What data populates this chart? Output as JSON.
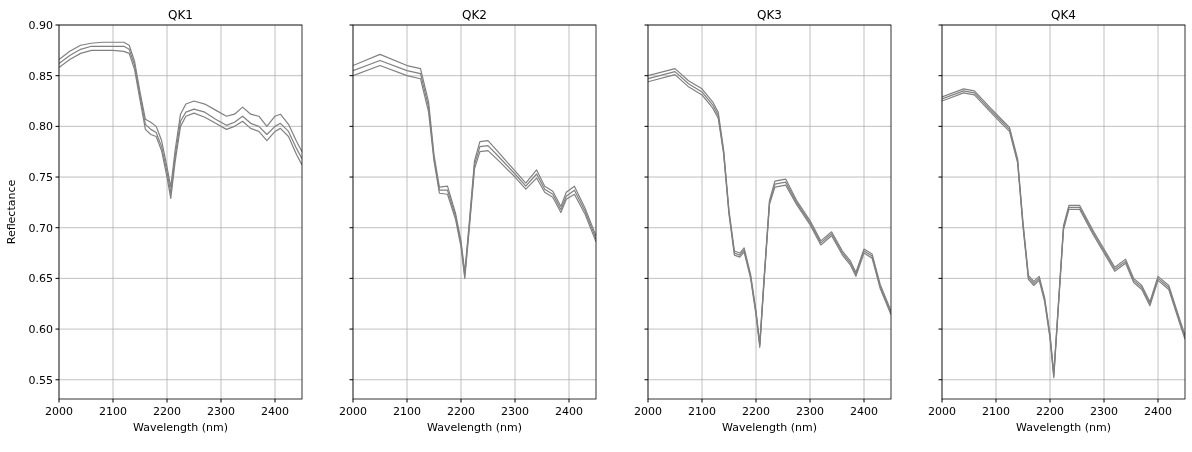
{
  "chart_data": [
    {
      "type": "line",
      "title": "QK1",
      "xlabel": "Wavelength (nm)",
      "ylabel": "Reflectance",
      "xlim": [
        2000,
        2450
      ],
      "xticks": [
        2000,
        2100,
        2200,
        2300,
        2400
      ],
      "ylim": [
        0.531,
        0.9
      ],
      "yticks": [
        {
          "value": 0.55,
          "label": "0.55"
        },
        {
          "value": 0.6,
          "label": "0.60"
        },
        {
          "value": 0.65,
          "label": "0.65"
        },
        {
          "value": 0.7,
          "label": "0.70"
        },
        {
          "value": 0.75,
          "label": "0.75"
        },
        {
          "value": 0.8,
          "label": "0.80"
        },
        {
          "value": 0.85,
          "label": "0.85"
        },
        {
          "value": 0.9,
          "label": "0.90"
        }
      ],
      "grid": true,
      "marker": "none",
      "line_style": "solid",
      "x": [
        2000,
        2020,
        2040,
        2060,
        2080,
        2100,
        2120,
        2130,
        2140,
        2150,
        2160,
        2170,
        2180,
        2190,
        2200,
        2207,
        2215,
        2225,
        2235,
        2250,
        2270,
        2290,
        2310,
        2325,
        2340,
        2355,
        2370,
        2385,
        2400,
        2410,
        2425,
        2440,
        2450
      ],
      "series": [
        {
          "color": "#808080",
          "values": [
            0.858,
            0.866,
            0.872,
            0.875,
            0.875,
            0.875,
            0.874,
            0.872,
            0.856,
            0.826,
            0.797,
            0.792,
            0.79,
            0.776,
            0.75,
            0.729,
            0.765,
            0.8,
            0.81,
            0.813,
            0.809,
            0.803,
            0.797,
            0.8,
            0.805,
            0.798,
            0.795,
            0.786,
            0.795,
            0.798,
            0.79,
            0.772,
            0.762
          ]
        },
        {
          "color": "#808080",
          "values": [
            0.862,
            0.87,
            0.876,
            0.879,
            0.879,
            0.879,
            0.879,
            0.876,
            0.86,
            0.83,
            0.802,
            0.797,
            0.794,
            0.78,
            0.755,
            0.734,
            0.77,
            0.805,
            0.814,
            0.817,
            0.814,
            0.807,
            0.801,
            0.804,
            0.81,
            0.803,
            0.8,
            0.792,
            0.8,
            0.803,
            0.795,
            0.778,
            0.768
          ]
        },
        {
          "color": "#808080",
          "values": [
            0.866,
            0.874,
            0.88,
            0.882,
            0.883,
            0.883,
            0.883,
            0.88,
            0.864,
            0.834,
            0.807,
            0.804,
            0.8,
            0.786,
            0.76,
            0.74,
            0.776,
            0.812,
            0.822,
            0.825,
            0.822,
            0.816,
            0.81,
            0.812,
            0.819,
            0.812,
            0.81,
            0.8,
            0.81,
            0.812,
            0.802,
            0.785,
            0.775
          ]
        }
      ]
    },
    {
      "type": "line",
      "title": "QK2",
      "xlabel": "Wavelength (nm)",
      "xlim": [
        2000,
        2450
      ],
      "xticks": [
        2000,
        2100,
        2200,
        2300,
        2400
      ],
      "ylim": [
        0.531,
        0.9
      ],
      "yticks": [
        0.55,
        0.6,
        0.65,
        0.7,
        0.75,
        0.8,
        0.85,
        0.9
      ],
      "tick_labels": "x",
      "grid": true,
      "marker": "none",
      "line_style": "solid",
      "x": [
        2000,
        2050,
        2100,
        2125,
        2140,
        2150,
        2160,
        2175,
        2190,
        2200,
        2207,
        2215,
        2225,
        2235,
        2250,
        2270,
        2300,
        2320,
        2340,
        2355,
        2370,
        2385,
        2395,
        2410,
        2430,
        2450
      ],
      "series": [
        {
          "color": "#808080",
          "values": [
            0.85,
            0.86,
            0.85,
            0.847,
            0.814,
            0.766,
            0.734,
            0.733,
            0.708,
            0.681,
            0.65,
            0.697,
            0.758,
            0.775,
            0.776,
            0.766,
            0.75,
            0.738,
            0.749,
            0.735,
            0.73,
            0.715,
            0.728,
            0.733,
            0.713,
            0.686
          ]
        },
        {
          "color": "#808080",
          "values": [
            0.855,
            0.865,
            0.855,
            0.852,
            0.819,
            0.769,
            0.737,
            0.737,
            0.711,
            0.684,
            0.653,
            0.7,
            0.762,
            0.78,
            0.781,
            0.77,
            0.753,
            0.741,
            0.753,
            0.738,
            0.733,
            0.718,
            0.731,
            0.737,
            0.716,
            0.689
          ]
        },
        {
          "color": "#808080",
          "values": [
            0.86,
            0.871,
            0.86,
            0.857,
            0.824,
            0.772,
            0.74,
            0.741,
            0.714,
            0.687,
            0.656,
            0.703,
            0.766,
            0.785,
            0.786,
            0.774,
            0.756,
            0.744,
            0.757,
            0.741,
            0.736,
            0.721,
            0.735,
            0.741,
            0.719,
            0.692
          ]
        }
      ]
    },
    {
      "type": "line",
      "title": "QK3",
      "xlabel": "Wavelength (nm)",
      "xlim": [
        2000,
        2450
      ],
      "xticks": [
        2000,
        2100,
        2200,
        2300,
        2400
      ],
      "ylim": [
        0.531,
        0.9
      ],
      "yticks": [
        0.55,
        0.6,
        0.65,
        0.7,
        0.75,
        0.8,
        0.85,
        0.9
      ],
      "tick_labels": "x",
      "grid": true,
      "marker": "none",
      "line_style": "solid",
      "x": [
        2000,
        2050,
        2075,
        2100,
        2120,
        2130,
        2140,
        2150,
        2160,
        2170,
        2178,
        2190,
        2200,
        2207,
        2215,
        2225,
        2235,
        2255,
        2275,
        2300,
        2320,
        2340,
        2360,
        2375,
        2385,
        2400,
        2415,
        2430,
        2450
      ],
      "series": [
        {
          "color": "#808080",
          "values": [
            0.844,
            0.851,
            0.839,
            0.831,
            0.818,
            0.808,
            0.773,
            0.713,
            0.673,
            0.671,
            0.676,
            0.65,
            0.614,
            0.582,
            0.647,
            0.723,
            0.74,
            0.742,
            0.723,
            0.703,
            0.683,
            0.692,
            0.673,
            0.663,
            0.652,
            0.675,
            0.67,
            0.64,
            0.614
          ]
        },
        {
          "color": "#808080",
          "values": [
            0.847,
            0.854,
            0.842,
            0.834,
            0.821,
            0.811,
            0.775,
            0.715,
            0.675,
            0.673,
            0.678,
            0.652,
            0.616,
            0.584,
            0.649,
            0.725,
            0.743,
            0.745,
            0.725,
            0.705,
            0.685,
            0.694,
            0.675,
            0.665,
            0.654,
            0.677,
            0.672,
            0.642,
            0.616
          ]
        },
        {
          "color": "#808080",
          "values": [
            0.85,
            0.857,
            0.845,
            0.837,
            0.824,
            0.814,
            0.777,
            0.717,
            0.677,
            0.675,
            0.68,
            0.654,
            0.618,
            0.586,
            0.651,
            0.727,
            0.746,
            0.748,
            0.727,
            0.707,
            0.687,
            0.696,
            0.677,
            0.667,
            0.656,
            0.679,
            0.674,
            0.644,
            0.618
          ]
        }
      ]
    },
    {
      "type": "line",
      "title": "QK4",
      "xlabel": "Wavelength (nm)",
      "xlim": [
        2000,
        2450
      ],
      "xticks": [
        2000,
        2100,
        2200,
        2300,
        2400
      ],
      "ylim": [
        0.531,
        0.9
      ],
      "yticks": [
        0.55,
        0.6,
        0.65,
        0.7,
        0.75,
        0.8,
        0.85,
        0.9
      ],
      "tick_labels": "x",
      "grid": true,
      "marker": "none",
      "line_style": "solid",
      "x": [
        2000,
        2040,
        2060,
        2090,
        2110,
        2125,
        2140,
        2150,
        2160,
        2170,
        2180,
        2190,
        2200,
        2207,
        2215,
        2225,
        2235,
        2255,
        2280,
        2300,
        2320,
        2340,
        2355,
        2370,
        2385,
        2400,
        2420,
        2440,
        2450
      ],
      "series": [
        {
          "color": "#808080",
          "values": [
            0.825,
            0.833,
            0.831,
            0.814,
            0.803,
            0.795,
            0.764,
            0.701,
            0.649,
            0.643,
            0.648,
            0.627,
            0.591,
            0.552,
            0.617,
            0.698,
            0.718,
            0.718,
            0.693,
            0.675,
            0.657,
            0.665,
            0.646,
            0.639,
            0.623,
            0.648,
            0.639,
            0.606,
            0.59
          ]
        },
        {
          "color": "#808080",
          "values": [
            0.827,
            0.835,
            0.833,
            0.816,
            0.805,
            0.797,
            0.766,
            0.703,
            0.651,
            0.645,
            0.65,
            0.629,
            0.593,
            0.554,
            0.619,
            0.7,
            0.72,
            0.72,
            0.695,
            0.677,
            0.659,
            0.667,
            0.648,
            0.641,
            0.625,
            0.65,
            0.641,
            0.608,
            0.592
          ]
        },
        {
          "color": "#808080",
          "values": [
            0.829,
            0.837,
            0.835,
            0.818,
            0.807,
            0.799,
            0.768,
            0.705,
            0.653,
            0.647,
            0.652,
            0.631,
            0.595,
            0.556,
            0.621,
            0.702,
            0.722,
            0.722,
            0.697,
            0.679,
            0.661,
            0.669,
            0.65,
            0.643,
            0.627,
            0.652,
            0.643,
            0.61,
            0.594
          ]
        }
      ]
    }
  ]
}
